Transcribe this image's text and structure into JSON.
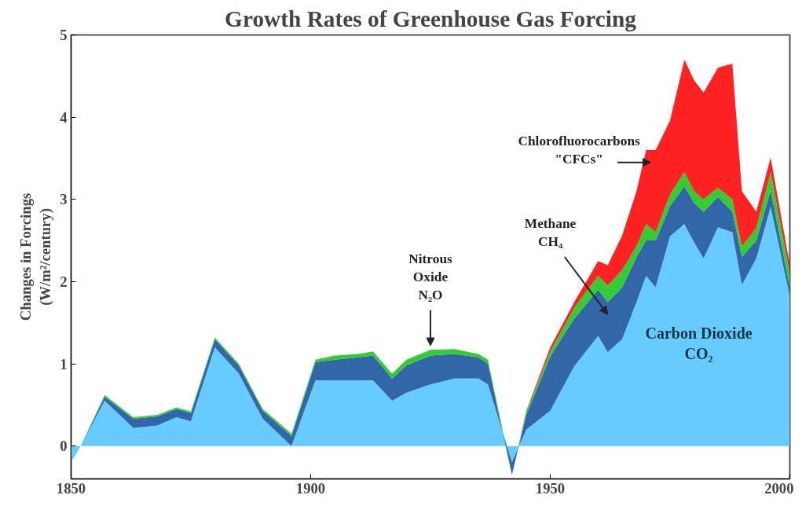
{
  "chart_data": {
    "type": "area",
    "stacked": true,
    "title": "Growth Rates of Greenhouse Gas Forcing",
    "ylabel": "Changes in Forcings\n(W/m²/century)",
    "x": [
      1850,
      1852,
      1857,
      1863,
      1868,
      1872,
      1875,
      1880,
      1885,
      1890,
      1896,
      1901,
      1905,
      1910,
      1913,
      1917,
      1920,
      1925,
      1930,
      1935,
      1937,
      1942,
      1945,
      1950,
      1955,
      1960,
      1962,
      1965,
      1968,
      1970,
      1972,
      1975,
      1978,
      1980,
      1982,
      1985,
      1988,
      1990,
      1993,
      1996,
      2000
    ],
    "series": [
      {
        "color": "#66ccff",
        "values": [
          -0.2,
          0,
          0.55,
          0.22,
          0.25,
          0.35,
          0.3,
          1.2,
          0.88,
          0.33,
          0,
          0.8,
          0.8,
          0.8,
          0.8,
          0.55,
          0.65,
          0.75,
          0.82,
          0.82,
          0.75,
          -0.2,
          0.2,
          0.43,
          0.97,
          1.34,
          1.14,
          1.3,
          1.75,
          2.07,
          1.93,
          2.55,
          2.7,
          2.48,
          2.28,
          2.66,
          2.6,
          1.96,
          2.28,
          2.91,
          1.82
        ]
      },
      {
        "color": "#3366a8",
        "values": [
          0,
          0,
          0.05,
          0.11,
          0.11,
          0.1,
          0.1,
          0.1,
          0.1,
          0.1,
          0.12,
          0.22,
          0.25,
          0.28,
          0.3,
          0.27,
          0.33,
          0.35,
          0.3,
          0.26,
          0.25,
          -0.15,
          0.18,
          0.66,
          0.58,
          0.56,
          0.61,
          0.63,
          0.55,
          0.43,
          0.57,
          0.37,
          0.46,
          0.48,
          0.57,
          0.37,
          0.25,
          0.34,
          0.22,
          0.2,
          0.11
        ]
      },
      {
        "color": "#33cc33",
        "values": [
          0,
          0,
          0.02,
          0.02,
          0.02,
          0.02,
          0.02,
          0.02,
          0.02,
          0.02,
          0.03,
          0.03,
          0.05,
          0.04,
          0.05,
          0.06,
          0.07,
          0.07,
          0.06,
          0.04,
          0.05,
          0,
          0.04,
          0.06,
          0.13,
          0.17,
          0.2,
          0.21,
          0.13,
          0.2,
          0.1,
          0.14,
          0.17,
          0.14,
          0.15,
          0.11,
          0.15,
          0.13,
          0.15,
          0.22,
          0.17
        ]
      },
      {
        "color": "#ff2222",
        "values": [
          0,
          0,
          0,
          0,
          0,
          0,
          0,
          0,
          0,
          0,
          0,
          0,
          0,
          0,
          0,
          0,
          0,
          0,
          0,
          0,
          0,
          0,
          0.01,
          0.05,
          0.07,
          0.18,
          0.25,
          0.42,
          0.67,
          0.9,
          1.0,
          0.9,
          1.37,
          1.35,
          1.3,
          1.46,
          1.65,
          0.67,
          0.2,
          0.18,
          0.1
        ]
      }
    ],
    "annotations": [
      "Nitrous\nOxide\nN₂O",
      "Methane\nCH₄",
      "Chlorofluorocarbons\n\"CFCs\"",
      "Carbon Dioxide\nCO₂"
    ],
    "xlim": [
      1850,
      2000
    ],
    "ylim": [
      -0.4,
      5
    ],
    "xticks": [
      1850,
      1900,
      1950,
      2000
    ],
    "yticks": [
      0,
      1,
      2,
      3,
      4,
      5
    ],
    "grid": false
  }
}
